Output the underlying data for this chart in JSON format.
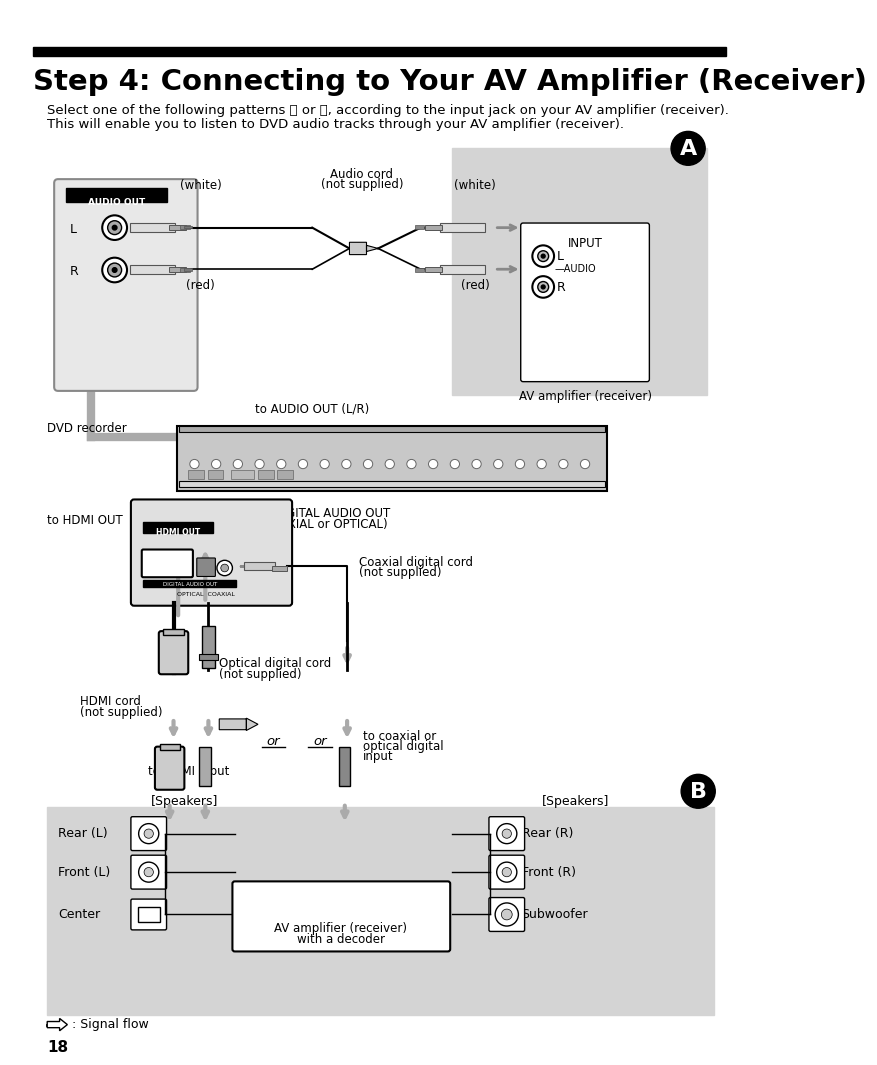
{
  "title": "Step 4: Connecting to Your AV Amplifier (Receiver)",
  "subtitle_line1": "Select one of the following patterns Ⓐ or Ⓑ, according to the input jack on your AV amplifier (receiver).",
  "subtitle_line2": "This will enable you to listen to DVD audio tracks through your AV amplifier (receiver).",
  "page_number": "18",
  "bg_color": "#ffffff",
  "gray_bg": "#d4d4d4",
  "dark_gray": "#888888",
  "black": "#000000",
  "light_gray": "#cccccc",
  "title_bar_color": "#000000",
  "section_b_bg": "#d4d4d4"
}
